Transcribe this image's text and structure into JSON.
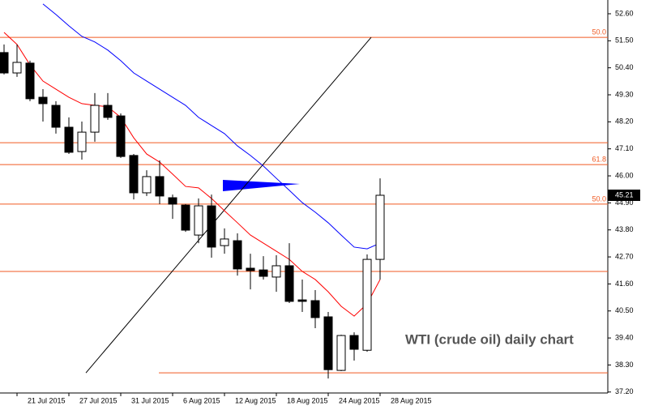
{
  "chart_data": {
    "type": "candlestick",
    "annotation": "WTI (crude oil) daily chart",
    "categories": [
      null,
      "21 Jul 2015",
      null,
      null,
      null,
      "27 Jul 2015",
      null,
      null,
      null,
      "31 Jul 2015",
      null,
      null,
      null,
      "6 Aug 2015",
      null,
      null,
      null,
      "12 Aug 2015",
      null,
      null,
      null,
      "18 Aug 2015",
      null,
      null,
      null,
      "24 Aug 2015",
      null,
      null,
      null,
      "28 Aug 2015"
    ],
    "open": [
      51.02,
      50.19,
      50.59,
      49.2,
      48.87,
      47.98,
      46.99,
      47.78,
      48.87,
      48.44,
      46.83,
      45.31,
      45.97,
      45.11,
      44.81,
      43.59,
      44.78,
      43.16,
      43.36,
      42.24,
      42.17,
      41.88,
      42.34,
      40.95,
      40.92,
      40.26,
      38.08,
      39.5,
      38.9,
      42.6
    ],
    "high": [
      51.35,
      51.35,
      50.69,
      49.53,
      49.04,
      48.38,
      48.21,
      49.37,
      49.37,
      48.54,
      46.89,
      46.23,
      46.63,
      45.24,
      44.85,
      45.08,
      45.24,
      43.86,
      43.66,
      42.83,
      42.73,
      42.77,
      43.26,
      41.78,
      41.35,
      40.46,
      39.53,
      39.63,
      42.8,
      45.9
    ],
    "low": [
      50.13,
      50.03,
      49.04,
      48.21,
      47.72,
      46.89,
      46.66,
      47.39,
      48.28,
      46.73,
      45.04,
      45.18,
      44.85,
      44.25,
      43.72,
      43.26,
      42.67,
      42.83,
      41.94,
      41.38,
      41.78,
      41.28,
      40.82,
      40.46,
      39.8,
      37.75,
      38.05,
      38.48,
      38.84,
      41.78
    ],
    "close": [
      50.19,
      50.62,
      49.14,
      48.94,
      47.98,
      46.96,
      47.78,
      48.87,
      48.38,
      46.79,
      45.31,
      45.97,
      45.18,
      44.85,
      43.79,
      44.78,
      43.1,
      43.43,
      42.21,
      42.14,
      41.91,
      42.34,
      40.89,
      40.89,
      40.23,
      38.11,
      39.5,
      38.94,
      42.6,
      45.21
    ],
    "up_color": "#ffffff",
    "down_color": "#000000",
    "series": [
      {
        "color": "#ff0000",
        "values": [
          51.84,
          51.35,
          50.52,
          49.86,
          49.53,
          49.2,
          48.94,
          48.87,
          48.81,
          48.38,
          47.55,
          46.89,
          46.56,
          46.07,
          45.57,
          45.51,
          45.08,
          44.58,
          44.09,
          43.59,
          43.26,
          42.93,
          42.6,
          42.11,
          41.78,
          41.28,
          40.69,
          40.29,
          40.79,
          41.78
        ]
      },
      {
        "color": "#0000ff",
        "values": [
          null,
          null,
          null,
          53.0,
          52.57,
          52.11,
          51.68,
          51.45,
          51.12,
          50.69,
          50.19,
          49.86,
          49.53,
          49.2,
          48.87,
          48.38,
          48.05,
          47.72,
          47.22,
          46.83,
          46.4,
          45.9,
          45.41,
          44.91,
          44.52,
          44.09,
          43.59,
          43.1,
          43.03,
          43.26
        ]
      }
    ],
    "hlines": [
      {
        "value": 51.64,
        "label": "50.0"
      },
      {
        "value": 47.35
      },
      {
        "value": 46.46,
        "label": "61.8"
      },
      {
        "value": 44.85,
        "label": "50.0"
      },
      {
        "value": 42.11
      },
      {
        "value": 37.98,
        "from": 6
      }
    ],
    "hline_color": "#f05a23",
    "trendline": {
      "x": [
        6,
        28
      ],
      "y": [
        37.98,
        51.64
      ]
    },
    "last_price": 45.21,
    "ylim": [
      37.16,
      53.16
    ],
    "yticks": [
      {
        "value": 52.6,
        "label": "52.60"
      },
      {
        "value": 51.5,
        "label": "51.50"
      },
      {
        "value": 50.4,
        "label": "50.40"
      },
      {
        "value": 49.3,
        "label": "49.30"
      },
      {
        "value": 48.2,
        "label": "48.20"
      },
      {
        "value": 47.1,
        "label": "47.10"
      },
      {
        "value": 46.0,
        "label": "46.00"
      },
      {
        "value": 44.9,
        "label": "44.90"
      },
      {
        "value": 43.8,
        "label": "43.80"
      },
      {
        "value": 42.7,
        "label": "42.70"
      },
      {
        "value": 41.6,
        "label": "41.60"
      },
      {
        "value": 40.5,
        "label": "40.50"
      },
      {
        "value": 39.4,
        "label": "39.40"
      },
      {
        "value": 38.3,
        "label": "38.30"
      },
      {
        "value": 37.2,
        "label": "37.20"
      }
    ],
    "grid": false
  }
}
